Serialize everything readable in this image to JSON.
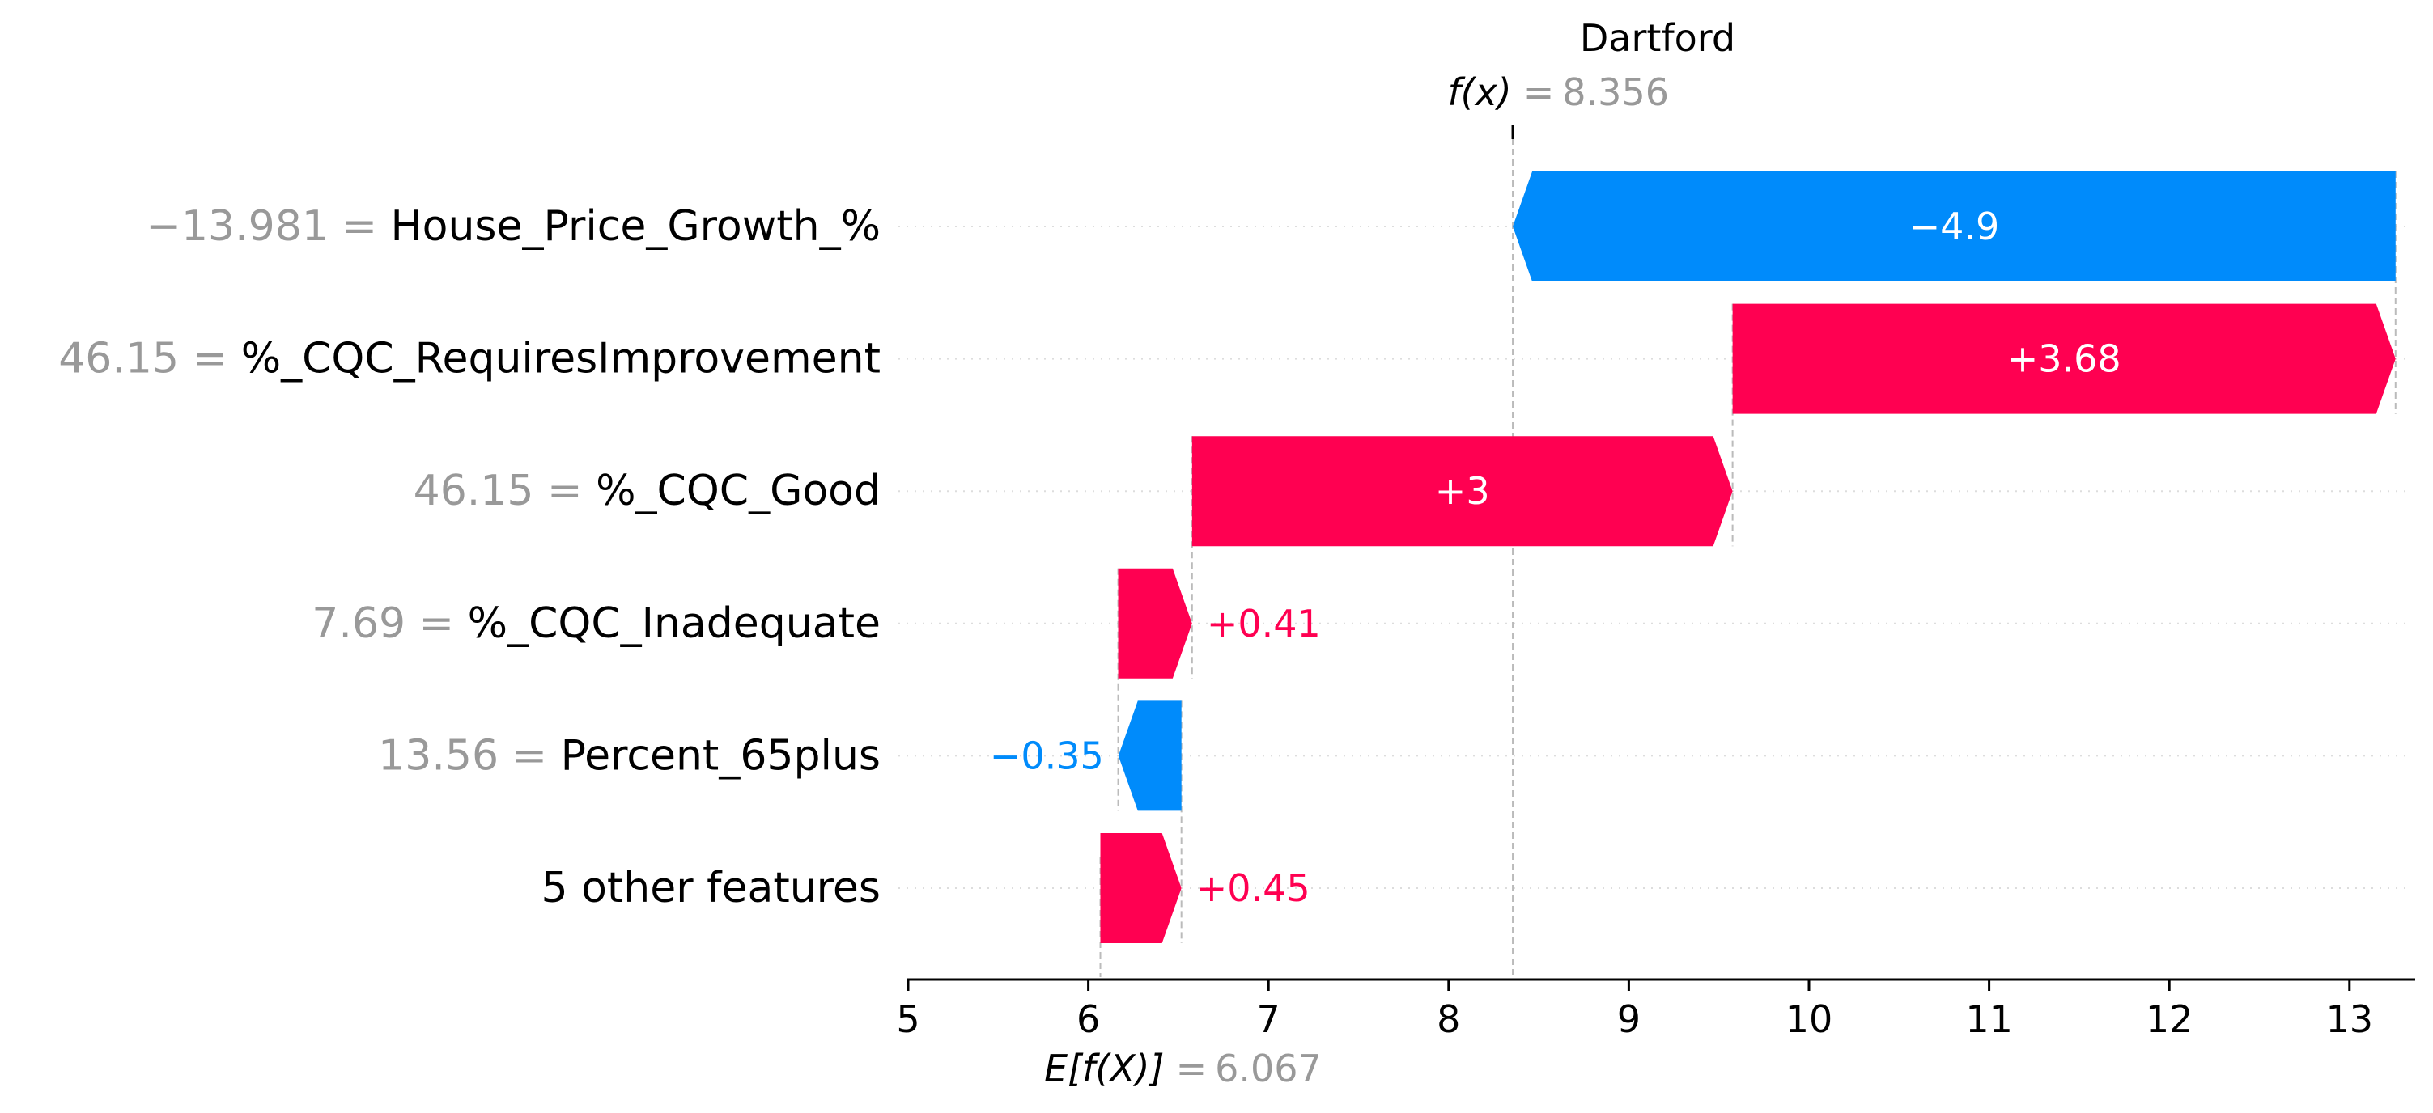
{
  "chart_data": {
    "type": "waterfall",
    "title": "Dartford",
    "fx": {
      "label": "f(x)",
      "equals": "=",
      "value": 8.356,
      "value_text": "8.356"
    },
    "base": {
      "label": "E[f(X)]",
      "equals": "=",
      "value": 6.067,
      "value_text": "6.067"
    },
    "xlim": [
      5,
      13.3
    ],
    "x_ticks": [
      5,
      6,
      7,
      8,
      9,
      10,
      11,
      12,
      13
    ],
    "x_tick_labels": [
      "5",
      "6",
      "7",
      "8",
      "9",
      "10",
      "11",
      "12",
      "13"
    ],
    "features": [
      {
        "value_text": "−13.981 =",
        "name": "House_Price_Growth_%",
        "start": 13.256,
        "contribution": -4.9,
        "label": "−4.9"
      },
      {
        "value_text": "46.15 =",
        "name": "%_CQC_RequiresImprovement",
        "start": 9.576,
        "contribution": 3.68,
        "label": "+3.68"
      },
      {
        "value_text": "46.15 =",
        "name": "%_CQC_Good",
        "start": 6.576,
        "contribution": 3.0,
        "label": "+3"
      },
      {
        "value_text": "7.69 =",
        "name": "%_CQC_Inadequate",
        "start": 6.166,
        "contribution": 0.41,
        "label": "+0.41"
      },
      {
        "value_text": "13.56 =",
        "name": "Percent_65plus",
        "start": 6.517,
        "contribution": -0.35,
        "label": "−0.35"
      },
      {
        "value_text": "",
        "name": "5 other features",
        "start": 6.067,
        "contribution": 0.45,
        "label": "+0.45"
      }
    ],
    "colors": {
      "positive": "#ff0051",
      "negative": "#008bfb",
      "value_gray": "#999999",
      "guide": "#bbbbbb"
    }
  }
}
